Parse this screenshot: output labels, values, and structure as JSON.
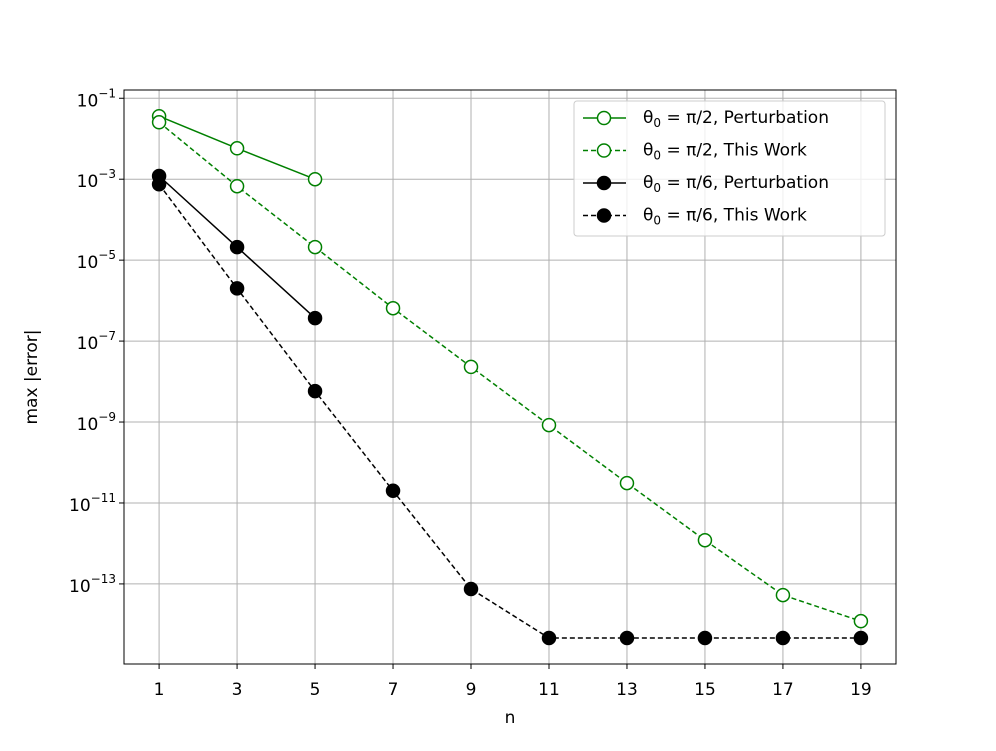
{
  "chart_data": {
    "type": "line",
    "xlabel": "n",
    "ylabel": "max |error|",
    "xlim": [
      0.1,
      19.9
    ],
    "ylim": [
      1.05e-15,
      0.16
    ],
    "yscale": "log",
    "grid": true,
    "legend": "upper right",
    "xticks": [
      1,
      3,
      5,
      7,
      9,
      11,
      13,
      15,
      17,
      19
    ],
    "yticks": [
      {
        "value": 0.1,
        "label": "10−1"
      },
      {
        "value": 0.001,
        "label": "10−3"
      },
      {
        "value": 1e-05,
        "label": "10−5"
      },
      {
        "value": 1e-07,
        "label": "10−7"
      },
      {
        "value": 1e-09,
        "label": "10−9"
      },
      {
        "value": 1e-11,
        "label": "10−11"
      },
      {
        "value": 1e-13,
        "label": "10−13"
      }
    ],
    "series": [
      {
        "name": "θ0 = π/2, Perturbation",
        "color": "#008000",
        "dashed": false,
        "filled": false,
        "x": [
          1,
          3,
          5
        ],
        "values": [
          0.036,
          0.0058,
          0.001
        ]
      },
      {
        "name": "θ0 = π/2, This Work",
        "color": "#008000",
        "dashed": true,
        "filled": false,
        "x": [
          1,
          3,
          5,
          7,
          9,
          11,
          13,
          15,
          17,
          19
        ],
        "values": [
          0.0255,
          0.00067,
          2.1e-05,
          6.5e-07,
          2.3e-08,
          8.4e-10,
          3.1e-11,
          1.2e-12,
          5.3e-14,
          1.2e-14
        ]
      },
      {
        "name": "θ0 = π/6, Perturbation",
        "color": "#000000",
        "dashed": false,
        "filled": true,
        "x": [
          1,
          3,
          5
        ],
        "values": [
          0.0012,
          2.1e-05,
          3.7e-07
        ]
      },
      {
        "name": "θ0 = π/6, This Work",
        "color": "#000000",
        "dashed": true,
        "filled": true,
        "x": [
          1,
          3,
          5,
          7,
          9,
          11,
          13,
          15,
          17,
          19
        ],
        "values": [
          0.00075,
          2e-06,
          5.8e-09,
          2e-11,
          7.5e-14,
          4.6e-15,
          4.6e-15,
          4.6e-15,
          4.6e-15,
          4.6e-15
        ]
      }
    ]
  }
}
